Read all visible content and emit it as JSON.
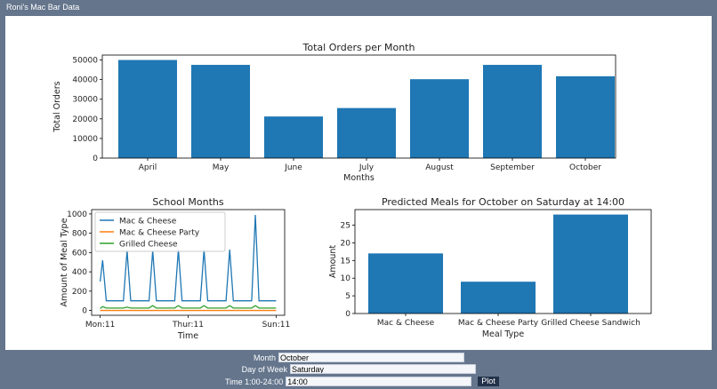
{
  "window": {
    "title": "Roni's Mac Bar Data"
  },
  "form": {
    "month_label": "Month",
    "month_value": "October",
    "day_label": "Day of Week",
    "day_value": "Saturday",
    "time_label": "Time 1:00-24:00",
    "time_value": "14:00",
    "plot_label": "Plot"
  },
  "chart_data": [
    {
      "type": "bar",
      "title": "Total Orders per Month",
      "xlabel": "Months",
      "ylabel": "Total Orders",
      "categories": [
        "April",
        "May",
        "June",
        "July",
        "August",
        "September",
        "October"
      ],
      "values": [
        50000,
        47500,
        21200,
        25500,
        40200,
        47500,
        41700
      ],
      "ylim": [
        0,
        52500
      ],
      "yticks": [
        0,
        10000,
        20000,
        30000,
        40000,
        50000
      ],
      "color": "#1f77b4",
      "grid": false
    },
    {
      "type": "line",
      "title": "School Months",
      "xlabel": "Time",
      "ylabel": "Amount of Meal Type",
      "xticks": [
        {
          "label": "Mon:11",
          "x": 0
        },
        {
          "label": "Thur:11",
          "x": 72
        },
        {
          "label": "Sun:11",
          "x": 144
        }
      ],
      "xlim": [
        -7,
        151
      ],
      "ylim": [
        -50,
        1045
      ],
      "yticks": [
        0,
        200,
        400,
        600,
        800,
        1000
      ],
      "legend": "top-left",
      "grid": false,
      "series": [
        {
          "name": "Mac & Cheese",
          "color": "#1f77b4",
          "points": [
            [
              0,
              300
            ],
            [
              2,
              520
            ],
            [
              5,
              100
            ],
            [
              19,
              100
            ],
            [
              22,
              620
            ],
            [
              25,
              100
            ],
            [
              40,
              100
            ],
            [
              43,
              620
            ],
            [
              46,
              100
            ],
            [
              61,
              100
            ],
            [
              64,
              630
            ],
            [
              67,
              100
            ],
            [
              82,
              100
            ],
            [
              85,
              630
            ],
            [
              88,
              100
            ],
            [
              103,
              100
            ],
            [
              106,
              630
            ],
            [
              109,
              100
            ],
            [
              124,
              100
            ],
            [
              127,
              990
            ],
            [
              130,
              100
            ],
            [
              144,
              100
            ]
          ]
        },
        {
          "name": "Mac & Cheese Party",
          "color": "#ff7f0e",
          "points": [
            [
              0,
              0
            ],
            [
              144,
              0
            ]
          ]
        },
        {
          "name": "Grilled Cheese",
          "color": "#2ca02c",
          "points": [
            [
              0,
              20
            ],
            [
              2,
              40
            ],
            [
              5,
              25
            ],
            [
              19,
              25
            ],
            [
              22,
              35
            ],
            [
              25,
              25
            ],
            [
              40,
              25
            ],
            [
              43,
              50
            ],
            [
              46,
              25
            ],
            [
              61,
              25
            ],
            [
              64,
              50
            ],
            [
              67,
              25
            ],
            [
              82,
              25
            ],
            [
              85,
              50
            ],
            [
              88,
              25
            ],
            [
              103,
              25
            ],
            [
              106,
              50
            ],
            [
              109,
              25
            ],
            [
              124,
              25
            ],
            [
              127,
              50
            ],
            [
              130,
              25
            ],
            [
              144,
              25
            ]
          ]
        }
      ]
    },
    {
      "type": "bar",
      "title": "Predicted Meals for October on Saturday at 14:00",
      "xlabel": "Meal Type",
      "ylabel": "Amount",
      "categories": [
        "Mac & Cheese",
        "Mac & Cheese Party",
        "Grilled Cheese Sandwich"
      ],
      "values": [
        17,
        9,
        28
      ],
      "ylim": [
        0,
        29.4
      ],
      "yticks": [
        0,
        5,
        10,
        15,
        20,
        25
      ],
      "color": "#1f77b4",
      "grid": false
    }
  ]
}
